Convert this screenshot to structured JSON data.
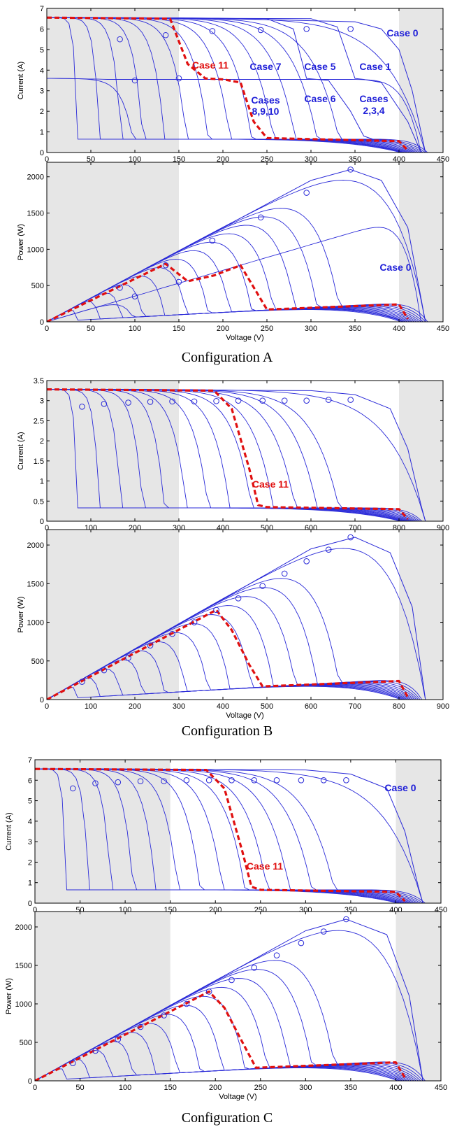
{
  "figures": [
    {
      "caption": "Configuration A",
      "panels": [
        {
          "ylabel": "Current (A)",
          "xlabel": "Voltage (V)",
          "annotations": [
            {
              "text": "Case 0",
              "red": false
            },
            {
              "text": "Case 11",
              "red": true
            },
            {
              "text": "Case 7",
              "red": false
            },
            {
              "text": "Case 5",
              "red": false
            },
            {
              "text": "Case 1",
              "red": false
            },
            {
              "text": "Cases",
              "red": false
            },
            {
              "text": "8,9,10",
              "red": false
            },
            {
              "text": "Case 6",
              "red": false
            },
            {
              "text": "Cases",
              "red": false
            },
            {
              "text": "2,3,4",
              "red": false
            }
          ]
        },
        {
          "ylabel": "Power (W)",
          "xlabel": "Voltage (V)",
          "annotations": []
        }
      ]
    },
    {
      "caption": "Configuration B",
      "panels": [
        {
          "ylabel": "Current (A)",
          "xlabel": "Voltage (V)",
          "annotations": [
            {
              "text": "Case 0",
              "red": false
            },
            {
              "text": "Case 11",
              "red": true
            }
          ]
        },
        {
          "ylabel": "Power (W)",
          "xlabel": "Voltage (V)",
          "annotations": []
        }
      ]
    },
    {
      "caption": "Configuration C",
      "panels": [
        {
          "ylabel": "Current (A)",
          "xlabel": "Voltage (V)",
          "annotations": [
            {
              "text": "Case 0",
              "red": false
            },
            {
              "text": "Case 11",
              "red": true
            }
          ]
        },
        {
          "ylabel": "Power (W)",
          "xlabel": "Voltage (V)",
          "annotations": []
        }
      ]
    }
  ],
  "colors": {
    "curves": "#2a2ad8",
    "case11": "#e01010",
    "shade": "#e6e6e6",
    "annotation": "#1f1fd8"
  },
  "chart_data": [
    {
      "type": "line",
      "title": "",
      "xlabel": "Voltage (V)",
      "ylabel": "Current (A)",
      "xlim": [
        0,
        450
      ],
      "ylim": [
        0,
        7
      ],
      "xticks": [
        0,
        50,
        100,
        150,
        200,
        250,
        300,
        350,
        400,
        450
      ],
      "yticks": [
        0,
        1,
        2,
        3,
        4,
        5,
        6,
        7
      ],
      "shaded_x_ranges": [
        [
          0,
          150
        ],
        [
          400,
          450
        ]
      ],
      "series": [
        {
          "name": "Case 0",
          "x": [
            0,
            200,
            350,
            380,
            400,
            415,
            425,
            430
          ],
          "y": [
            6.55,
            6.5,
            6.35,
            6.0,
            5.0,
            3.0,
            1.0,
            0
          ]
        },
        {
          "name": "Case 1",
          "x": [
            0,
            300,
            330,
            350,
            360,
            380,
            410,
            425
          ],
          "y": [
            6.55,
            6.5,
            6.1,
            3.6,
            3.55,
            3.4,
            1.5,
            0
          ]
        },
        {
          "name": "Case 5",
          "x": [
            0,
            250,
            280,
            295,
            320,
            345,
            360,
            370
          ],
          "y": [
            6.55,
            6.5,
            6.0,
            3.6,
            3.5,
            2.0,
            0.8,
            0.65
          ]
        },
        {
          "name": "Case 11",
          "x": [
            0,
            140,
            160,
            180,
            200,
            220,
            235,
            250,
            400,
            410
          ],
          "y": [
            6.55,
            6.5,
            4.3,
            3.6,
            3.55,
            3.4,
            1.5,
            0.7,
            0.55,
            0.1
          ]
        }
      ],
      "mpp_markers": [
        [
          83,
          5.5
        ],
        [
          100,
          3.5
        ],
        [
          135,
          5.7
        ],
        [
          150,
          3.6
        ],
        [
          188,
          5.9
        ],
        [
          243,
          5.95
        ],
        [
          295,
          6.0
        ],
        [
          345,
          6.0
        ]
      ]
    },
    {
      "type": "line",
      "title": "",
      "xlabel": "Voltage (V)",
      "ylabel": "Power (W)",
      "xlim": [
        0,
        450
      ],
      "ylim": [
        0,
        2200
      ],
      "xticks": [
        0,
        50,
        100,
        150,
        200,
        250,
        300,
        350,
        400,
        450
      ],
      "yticks": [
        0,
        500,
        1000,
        1500,
        2000
      ],
      "shaded_x_ranges": [
        [
          0,
          150
        ],
        [
          400,
          450
        ]
      ],
      "series": [
        {
          "name": "Case 0",
          "x": [
            0,
            300,
            345,
            380,
            410,
            430
          ],
          "y": [
            0,
            1950,
            2100,
            1950,
            1300,
            0
          ]
        },
        {
          "name": "Case 11",
          "x": [
            0,
            135,
            160,
            190,
            220,
            250,
            400,
            410
          ],
          "y": [
            0,
            800,
            560,
            640,
            780,
            170,
            240,
            40
          ]
        }
      ],
      "mpp_markers": [
        [
          83,
          470
        ],
        [
          100,
          350
        ],
        [
          135,
          780
        ],
        [
          150,
          550
        ],
        [
          188,
          1120
        ],
        [
          243,
          1440
        ],
        [
          295,
          1780
        ],
        [
          345,
          2100
        ]
      ]
    },
    {
      "type": "line",
      "title": "",
      "xlabel": "Voltage (V)",
      "ylabel": "Current (A)",
      "xlim": [
        0,
        900
      ],
      "ylim": [
        0,
        3.5
      ],
      "xticks": [
        0,
        100,
        200,
        300,
        400,
        500,
        600,
        700,
        800,
        900
      ],
      "yticks": [
        0,
        0.5,
        1,
        1.5,
        2,
        2.5,
        3,
        3.5
      ],
      "shaded_x_ranges": [
        [
          0,
          300
        ],
        [
          800,
          900
        ]
      ],
      "series": [
        {
          "name": "Case 0",
          "x": [
            0,
            600,
            700,
            780,
            820,
            850,
            860
          ],
          "y": [
            3.28,
            3.25,
            3.15,
            2.8,
            1.8,
            0.4,
            0
          ]
        },
        {
          "name": "Case 11",
          "x": [
            0,
            380,
            420,
            460,
            480,
            500,
            800,
            820
          ],
          "y": [
            3.28,
            3.25,
            2.8,
            1.3,
            0.4,
            0.35,
            0.3,
            0.05
          ]
        }
      ],
      "mpp_markers": [
        [
          80,
          2.85
        ],
        [
          130,
          2.92
        ],
        [
          185,
          2.95
        ],
        [
          235,
          2.97
        ],
        [
          285,
          2.98
        ],
        [
          335,
          2.98
        ],
        [
          385,
          2.99
        ],
        [
          435,
          3.0
        ],
        [
          490,
          3.0
        ],
        [
          540,
          3.0
        ],
        [
          590,
          3.0
        ],
        [
          640,
          3.02
        ],
        [
          690,
          3.02
        ]
      ]
    },
    {
      "type": "line",
      "title": "",
      "xlabel": "Voltage (V)",
      "ylabel": "Power (W)",
      "xlim": [
        0,
        900
      ],
      "ylim": [
        0,
        2200
      ],
      "xticks": [
        0,
        100,
        200,
        300,
        400,
        500,
        600,
        700,
        800,
        900
      ],
      "yticks": [
        0,
        500,
        1000,
        1500,
        2000
      ],
      "shaded_x_ranges": [
        [
          0,
          300
        ],
        [
          800,
          900
        ]
      ],
      "series": [
        {
          "name": "Case 0",
          "x": [
            0,
            600,
            700,
            780,
            830,
            860
          ],
          "y": [
            0,
            1950,
            2100,
            1900,
            1200,
            0
          ]
        },
        {
          "name": "Case 11",
          "x": [
            0,
            385,
            420,
            460,
            490,
            800,
            820
          ],
          "y": [
            0,
            1160,
            900,
            450,
            170,
            240,
            30
          ]
        }
      ],
      "mpp_markers": [
        [
          80,
          230
        ],
        [
          130,
          380
        ],
        [
          185,
          540
        ],
        [
          235,
          700
        ],
        [
          285,
          850
        ],
        [
          335,
          1000
        ],
        [
          385,
          1160
        ],
        [
          435,
          1310
        ],
        [
          490,
          1470
        ],
        [
          540,
          1630
        ],
        [
          590,
          1790
        ],
        [
          640,
          1940
        ],
        [
          690,
          2100
        ]
      ]
    },
    {
      "type": "line",
      "title": "",
      "xlabel": "Voltage (V)",
      "ylabel": "Current (A)",
      "xlim": [
        0,
        450
      ],
      "ylim": [
        0,
        7
      ],
      "xticks": [
        0,
        50,
        100,
        150,
        200,
        250,
        300,
        350,
        400,
        450
      ],
      "yticks": [
        0,
        1,
        2,
        3,
        4,
        5,
        6,
        7
      ],
      "shaded_x_ranges": [
        [
          0,
          150
        ],
        [
          400,
          450
        ]
      ],
      "series": [
        {
          "name": "Case 0",
          "x": [
            0,
            300,
            350,
            390,
            410,
            425,
            430
          ],
          "y": [
            6.55,
            6.5,
            6.3,
            5.6,
            3.5,
            0.8,
            0
          ]
        },
        {
          "name": "Case 11",
          "x": [
            0,
            190,
            210,
            230,
            240,
            250,
            400,
            410
          ],
          "y": [
            6.55,
            6.5,
            5.6,
            2.5,
            0.8,
            0.65,
            0.55,
            0.1
          ]
        }
      ],
      "mpp_markers": [
        [
          42,
          5.6
        ],
        [
          67,
          5.85
        ],
        [
          92,
          5.9
        ],
        [
          117,
          5.95
        ],
        [
          143,
          5.95
        ],
        [
          168,
          6.0
        ],
        [
          193,
          6.0
        ],
        [
          218,
          6.0
        ],
        [
          243,
          6.0
        ],
        [
          268,
          6.0
        ],
        [
          295,
          6.0
        ],
        [
          320,
          6.0
        ],
        [
          345,
          6.0
        ]
      ]
    },
    {
      "type": "line",
      "title": "",
      "xlabel": "Voltage (V)",
      "ylabel": "Power (W)",
      "xlim": [
        0,
        450
      ],
      "ylim": [
        0,
        2200
      ],
      "xticks": [
        0,
        50,
        100,
        150,
        200,
        250,
        300,
        350,
        400,
        450
      ],
      "yticks": [
        0,
        500,
        1000,
        1500,
        2000
      ],
      "shaded_x_ranges": [
        [
          0,
          150
        ],
        [
          400,
          450
        ]
      ],
      "series": [
        {
          "name": "Case 0",
          "x": [
            0,
            300,
            345,
            390,
            415,
            430
          ],
          "y": [
            0,
            1950,
            2100,
            1900,
            1100,
            0
          ]
        },
        {
          "name": "Case 11",
          "x": [
            0,
            193,
            210,
            230,
            245,
            400,
            410
          ],
          "y": [
            0,
            1160,
            950,
            500,
            170,
            240,
            40
          ]
        }
      ],
      "mpp_markers": [
        [
          42,
          230
        ],
        [
          67,
          390
        ],
        [
          92,
          540
        ],
        [
          117,
          700
        ],
        [
          143,
          850
        ],
        [
          168,
          1000
        ],
        [
          193,
          1160
        ],
        [
          218,
          1310
        ],
        [
          243,
          1470
        ],
        [
          268,
          1630
        ],
        [
          295,
          1790
        ],
        [
          320,
          1940
        ],
        [
          345,
          2100
        ]
      ]
    }
  ]
}
